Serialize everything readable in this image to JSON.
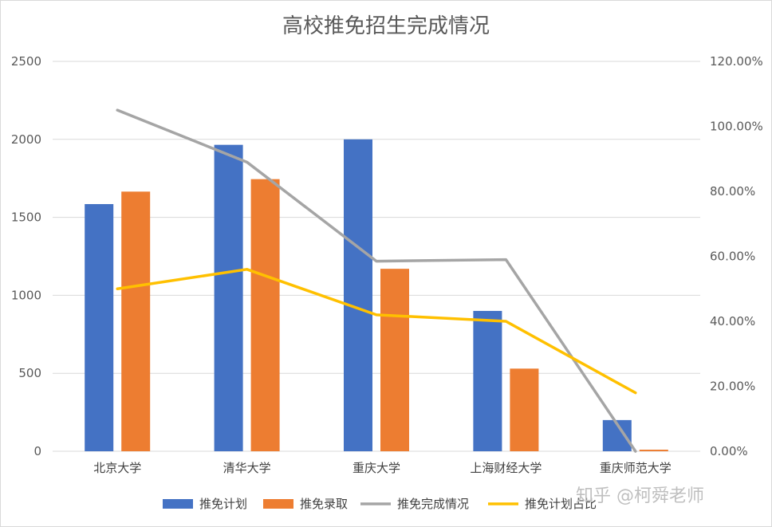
{
  "chart_data": {
    "type": "bar",
    "title": "高校推免招生完成情况",
    "categories": [
      "北京大学",
      "清华大学",
      "重庆大学",
      "上海财经大学",
      "重庆师范大学"
    ],
    "series": [
      {
        "name": "推免计划",
        "type": "bar",
        "axis": "left",
        "color": "#4472C4",
        "values": [
          1585,
          1965,
          2000,
          900,
          200
        ]
      },
      {
        "name": "推免录取",
        "type": "bar",
        "axis": "left",
        "color": "#ED7D31",
        "values": [
          1665,
          1745,
          1170,
          530,
          10
        ]
      },
      {
        "name": "推免完成情况",
        "type": "line",
        "axis": "right",
        "color": "#A5A5A5",
        "values": [
          1.05,
          0.89,
          0.585,
          0.59,
          0.0
        ]
      },
      {
        "name": "推免计划占比",
        "type": "line",
        "axis": "right",
        "color": "#FFC000",
        "values": [
          0.5,
          0.56,
          0.42,
          0.4,
          0.18
        ]
      }
    ],
    "ylim": [
      0,
      2500
    ],
    "yticks": [
      "0",
      "500",
      "1000",
      "1500",
      "2000",
      "2500"
    ],
    "y2lim": [
      0,
      1.2
    ],
    "y2ticks": [
      "0.00%",
      "20.00%",
      "40.00%",
      "60.00%",
      "80.00%",
      "100.00%",
      "120.00%"
    ],
    "grid": true,
    "legend_position": "bottom"
  },
  "watermark": "知乎 @柯舜老师"
}
